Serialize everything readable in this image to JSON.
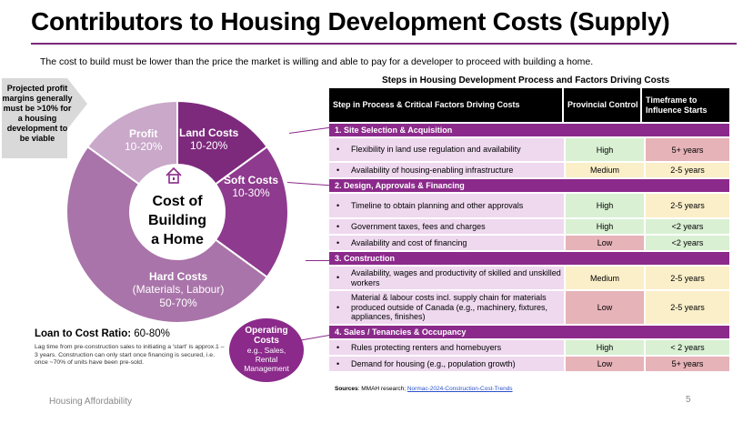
{
  "title": "Contributors to Housing Development Costs (Supply)",
  "subtitle": "The cost to build must be lower than the price the market is willing and able to pay for a developer to proceed with building a home.",
  "callout": "Projected profit margins generally must be >10% for a housing development to be viable",
  "center": {
    "line1": "Cost of",
    "line2": "Building",
    "line3": "a Home"
  },
  "segments": [
    {
      "name": "Profit",
      "range": "10-20%",
      "value": 15,
      "color": "#c9a8c9"
    },
    {
      "name": "Land Costs",
      "range": "10-20%",
      "value": 15,
      "color": "#7d2a7d"
    },
    {
      "name": "Soft Costs",
      "range": "10-30%",
      "value": 20,
      "color": "#8e3a8e"
    },
    {
      "name": "Hard Costs",
      "range_line1": "(Materials, Labour)",
      "range": "50-70%",
      "value": 50,
      "color": "#a974a9"
    }
  ],
  "loan_to_cost": {
    "label": "Loan to Cost Ratio:",
    "value": "60-80%"
  },
  "lag_note": "Lag time from pre-construction sales to initiating a 'start' is approx.1 – 3 years. Construction can only start once financing is secured, i.e. once ~70% of units have been pre-sold.",
  "operating_costs": {
    "title1": "Operating",
    "title2": "Costs",
    "sub1": "e.g., Sales,",
    "sub2": "Rental",
    "sub3": "Management"
  },
  "steps_heading": "Steps in Housing Development Process and Factors Driving Costs",
  "table": {
    "headers": [
      "Step in Process & Critical Factors Driving Costs",
      "Provincial Control",
      "Timeframe to Influence Starts"
    ],
    "sections": [
      {
        "title": "1. Site Selection & Acquisition",
        "rows": [
          {
            "factor": "Flexibility in land use regulation and availability",
            "control": "High",
            "time": "5+ years",
            "cclass": "hi",
            "tclass": "lo",
            "h": 25
          },
          {
            "factor": "Availability of housing-enabling infrastructure",
            "control": "Medium",
            "time": "2-5 years",
            "cclass": "md",
            "tclass": "md",
            "h": 16
          }
        ]
      },
      {
        "title": "2. Design, Approvals & Financing",
        "rows": [
          {
            "factor": "Timeline to obtain planning and other approvals",
            "control": "High",
            "time": "2-5 years",
            "cclass": "hi",
            "tclass": "md",
            "h": 26
          },
          {
            "factor": "Government taxes, fees and charges",
            "control": "High",
            "time": "<2 years",
            "cclass": "hi",
            "tclass": "hi",
            "h": 16
          },
          {
            "factor": "Availability and cost of financing",
            "control": "Low",
            "time": "<2 years",
            "cclass": "lo",
            "tclass": "hi",
            "h": 16
          }
        ]
      },
      {
        "title": "3. Construction",
        "rows": [
          {
            "factor": "Availability, wages and productivity of skilled and unskilled workers",
            "control": "Medium",
            "time": "2-5 years",
            "cclass": "md",
            "tclass": "md",
            "h": 25
          },
          {
            "factor": "Material & labour costs incl. supply chain for materials produced outside of Canada (e.g., machinery, fixtures, appliances, finishes)",
            "control": "Low",
            "time": "2-5 years",
            "cclass": "lo",
            "tclass": "md",
            "h": 36
          }
        ]
      },
      {
        "title": "4. Sales / Tenancies & Occupancy",
        "rows": [
          {
            "factor": "Rules protecting renters and homebuyers",
            "control": "High",
            "time": "< 2 years",
            "cclass": "hi",
            "tclass": "hi",
            "h": 16
          },
          {
            "factor": "Demand for housing (e.g., population growth)",
            "control": "Low",
            "time": "5+ years",
            "cclass": "lo",
            "tclass": "lo",
            "h": 16
          }
        ]
      }
    ]
  },
  "sources": {
    "label": "Sources",
    "text": ": MMAH research; ",
    "link": "Normac-2024-Construction-Cost-Trends"
  },
  "footer": "Housing Affordability",
  "page_number": "5"
}
